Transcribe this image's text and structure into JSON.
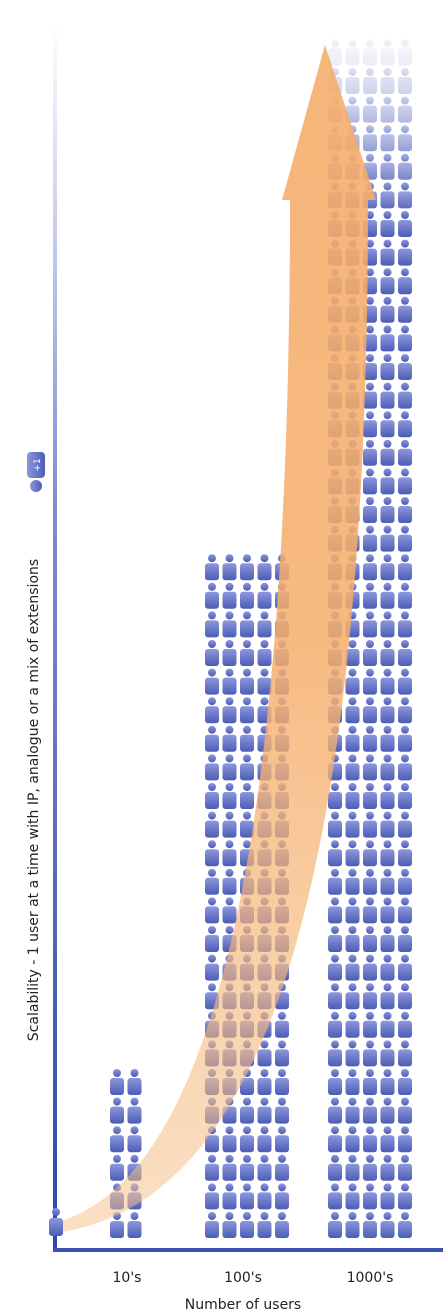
{
  "y_axis_label": "Scalability - 1 user at a time with IP, analogue or a mix of extensions",
  "icon_badge": "+1",
  "x_categories": [
    "10's",
    "100's",
    "1000's"
  ],
  "x_axis_label": "Number of users"
}
